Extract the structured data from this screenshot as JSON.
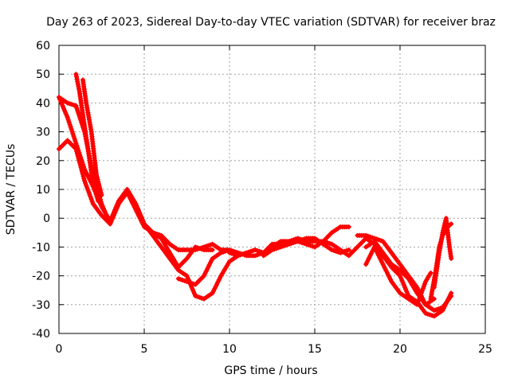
{
  "chart_data": {
    "type": "scatter",
    "title": "Day 263 of 2023, Sidereal Day-to-day VTEC variation (SDTVAR) for receiver braz",
    "xlabel": "GPS time / hours",
    "ylabel": "SDTVAR / TECUs",
    "xlim": [
      0,
      25
    ],
    "ylim": [
      -40,
      60
    ],
    "xticks": [
      0,
      5,
      10,
      15,
      20,
      25
    ],
    "yticks": [
      -40,
      -30,
      -20,
      -10,
      0,
      10,
      20,
      30,
      40,
      50,
      60
    ],
    "grid": true,
    "marker": "+",
    "color": "#ff0000",
    "series": [
      {
        "name": "track-1",
        "points": [
          [
            0.0,
            42
          ],
          [
            0.5,
            40
          ],
          [
            1.0,
            39
          ],
          [
            1.5,
            30
          ],
          [
            2.0,
            15
          ],
          [
            2.5,
            5
          ],
          [
            3.0,
            -2
          ],
          [
            3.5,
            5
          ],
          [
            4.0,
            9
          ],
          [
            4.5,
            3
          ],
          [
            5.0,
            -3
          ],
          [
            5.5,
            -5
          ],
          [
            6.0,
            -6
          ],
          [
            6.5,
            -9
          ],
          [
            7.0,
            -11
          ],
          [
            7.5,
            -11
          ],
          [
            8.0,
            -11
          ],
          [
            8.5,
            -10
          ],
          [
            9.0,
            -9
          ],
          [
            9.5,
            -11
          ],
          [
            10.0,
            -11
          ]
        ]
      },
      {
        "name": "track-2",
        "points": [
          [
            0.0,
            42
          ],
          [
            0.5,
            35
          ],
          [
            1.0,
            26
          ],
          [
            1.5,
            17
          ],
          [
            2.0,
            11
          ],
          [
            2.5,
            4
          ],
          [
            3.0,
            -1
          ],
          [
            3.5,
            6
          ],
          [
            4.0,
            10
          ],
          [
            4.5,
            5
          ],
          [
            5.0,
            -2
          ],
          [
            5.5,
            -5
          ],
          [
            6.0,
            -7
          ],
          [
            6.5,
            -12
          ],
          [
            7.0,
            -17
          ],
          [
            7.5,
            -14
          ],
          [
            8.0,
            -10
          ],
          [
            8.5,
            -11
          ],
          [
            9.0,
            -11
          ]
        ]
      },
      {
        "name": "track-3",
        "points": [
          [
            0.0,
            24
          ],
          [
            0.5,
            27
          ],
          [
            1.0,
            24
          ],
          [
            1.5,
            13
          ],
          [
            2.0,
            5
          ],
          [
            2.5,
            1
          ],
          [
            3.0,
            -2
          ],
          [
            3.5,
            5
          ],
          [
            4.0,
            10
          ],
          [
            4.5,
            5
          ],
          [
            5.0,
            -2
          ],
          [
            5.5,
            -6
          ],
          [
            6.0,
            -10
          ],
          [
            6.5,
            -14
          ],
          [
            7.0,
            -18
          ],
          [
            7.5,
            -20
          ],
          [
            8.0,
            -27
          ],
          [
            8.5,
            -28
          ],
          [
            9.0,
            -26
          ],
          [
            9.5,
            -20
          ],
          [
            10.0,
            -15
          ],
          [
            10.5,
            -13
          ],
          [
            11.0,
            -12
          ]
        ]
      },
      {
        "name": "track-4",
        "points": [
          [
            1.0,
            50
          ],
          [
            1.2,
            44
          ],
          [
            1.5,
            32
          ],
          [
            1.8,
            20
          ],
          [
            2.0,
            12
          ],
          [
            2.3,
            6
          ]
        ]
      },
      {
        "name": "track-5",
        "points": [
          [
            1.4,
            48
          ],
          [
            1.6,
            40
          ],
          [
            1.9,
            30
          ],
          [
            2.2,
            15
          ],
          [
            2.5,
            8
          ]
        ]
      },
      {
        "name": "track-6",
        "points": [
          [
            7.0,
            -21
          ],
          [
            7.5,
            -22
          ],
          [
            8.0,
            -23
          ],
          [
            8.5,
            -20
          ],
          [
            9.0,
            -14
          ],
          [
            9.5,
            -12
          ],
          [
            10.0,
            -11
          ],
          [
            10.5,
            -12
          ],
          [
            11.0,
            -13
          ],
          [
            11.5,
            -13
          ],
          [
            12.0,
            -12
          ],
          [
            12.5,
            -10
          ],
          [
            13.0,
            -8
          ],
          [
            13.5,
            -8
          ],
          [
            14.0,
            -7
          ],
          [
            14.5,
            -8
          ],
          [
            15.0,
            -8
          ],
          [
            15.5,
            -8
          ],
          [
            16.0,
            -9
          ],
          [
            16.5,
            -11
          ],
          [
            17.0,
            -13
          ],
          [
            17.5,
            -10
          ],
          [
            18.0,
            -7
          ],
          [
            18.5,
            -9
          ],
          [
            19.0,
            -13
          ],
          [
            19.5,
            -17
          ],
          [
            20.0,
            -20
          ],
          [
            20.5,
            -27
          ],
          [
            21.0,
            -29
          ],
          [
            21.5,
            -33
          ],
          [
            22.0,
            -34
          ],
          [
            22.5,
            -32
          ],
          [
            23.0,
            -26
          ]
        ]
      },
      {
        "name": "track-7",
        "points": [
          [
            10.0,
            -12
          ],
          [
            10.5,
            -13
          ],
          [
            11.0,
            -12
          ],
          [
            11.5,
            -11
          ],
          [
            12.0,
            -12
          ],
          [
            12.5,
            -9
          ],
          [
            13.0,
            -9
          ],
          [
            13.5,
            -8
          ],
          [
            14.0,
            -8
          ],
          [
            14.5,
            -9
          ],
          [
            15.0,
            -10
          ],
          [
            15.5,
            -8
          ],
          [
            16.0,
            -5
          ],
          [
            16.5,
            -3
          ],
          [
            17.0,
            -3
          ]
        ]
      },
      {
        "name": "track-8",
        "points": [
          [
            12.0,
            -13
          ],
          [
            12.5,
            -11
          ],
          [
            13.0,
            -10
          ],
          [
            13.5,
            -9
          ],
          [
            14.0,
            -8
          ],
          [
            14.5,
            -7
          ],
          [
            15.0,
            -7
          ],
          [
            15.5,
            -9
          ],
          [
            16.0,
            -11
          ],
          [
            16.5,
            -12
          ],
          [
            17.0,
            -11
          ]
        ]
      },
      {
        "name": "track-9",
        "points": [
          [
            17.5,
            -6
          ],
          [
            18.0,
            -6
          ],
          [
            18.5,
            -7
          ],
          [
            19.0,
            -8
          ],
          [
            19.5,
            -12
          ],
          [
            20.0,
            -16
          ],
          [
            20.5,
            -20
          ],
          [
            21.0,
            -24
          ],
          [
            21.5,
            -30
          ],
          [
            22.0,
            -32
          ],
          [
            22.5,
            -31
          ],
          [
            23.0,
            -27
          ]
        ]
      },
      {
        "name": "track-10",
        "points": [
          [
            18.0,
            -10
          ],
          [
            18.5,
            -8
          ],
          [
            19.0,
            -12
          ],
          [
            19.5,
            -16
          ],
          [
            20.0,
            -18
          ],
          [
            20.5,
            -21
          ],
          [
            21.0,
            -26
          ],
          [
            21.5,
            -30
          ],
          [
            22.0,
            -28
          ]
        ]
      },
      {
        "name": "track-11",
        "points": [
          [
            18.0,
            -16
          ],
          [
            18.5,
            -10
          ],
          [
            19.0,
            -16
          ],
          [
            19.5,
            -22
          ],
          [
            20.0,
            -26
          ],
          [
            20.5,
            -28
          ],
          [
            21.0,
            -30
          ],
          [
            21.5,
            -22
          ],
          [
            21.8,
            -19
          ]
        ]
      },
      {
        "name": "track-12",
        "points": [
          [
            22.0,
            -24
          ],
          [
            22.3,
            -12
          ],
          [
            22.5,
            -5
          ],
          [
            22.7,
            0
          ],
          [
            22.9,
            -10
          ],
          [
            23.0,
            -14
          ]
        ]
      },
      {
        "name": "track-13",
        "points": [
          [
            21.8,
            -28
          ],
          [
            22.1,
            -18
          ],
          [
            22.3,
            -10
          ],
          [
            22.5,
            -6
          ],
          [
            22.8,
            -3
          ],
          [
            23.0,
            -2
          ]
        ]
      }
    ]
  }
}
